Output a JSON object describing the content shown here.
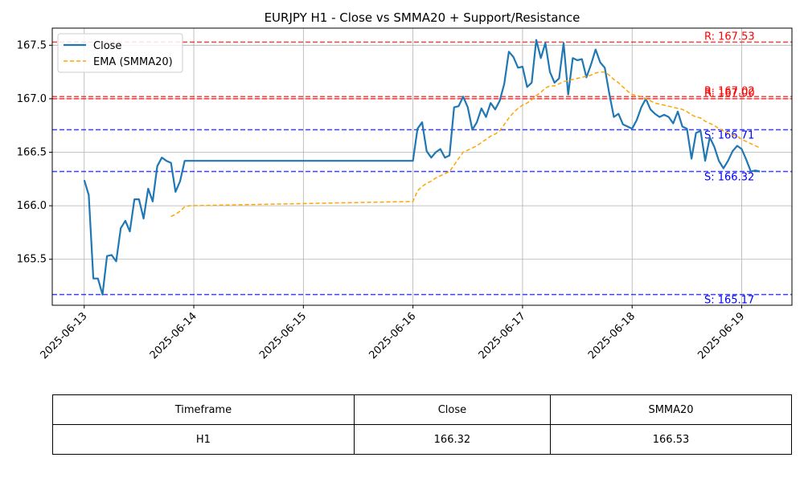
{
  "chart_data": {
    "type": "line",
    "title": "EURJPY H1 - Close vs SMMA20 + Support/Resistance",
    "xlabel": "",
    "ylabel": "",
    "x_range": [
      "2025-06-12T17:00",
      "2025-06-19T11:00"
    ],
    "ylim": [
      165.07,
      167.66
    ],
    "y_ticks": [
      165.5,
      166.0,
      166.5,
      167.0,
      167.5
    ],
    "x_tick_labels": [
      "2025-06-13",
      "2025-06-14",
      "2025-06-15",
      "2025-06-16",
      "2025-06-17",
      "2025-06-18",
      "2025-06-19"
    ],
    "grid": true,
    "legend_position": "top-left",
    "series": [
      {
        "name": "Close",
        "color": "#1f77b4",
        "style": "solid",
        "x": [
          "2025-06-13T00:00",
          "2025-06-13T01:00",
          "2025-06-13T02:00",
          "2025-06-13T03:00",
          "2025-06-13T04:00",
          "2025-06-13T05:00",
          "2025-06-13T06:00",
          "2025-06-13T07:00",
          "2025-06-13T08:00",
          "2025-06-13T09:00",
          "2025-06-13T10:00",
          "2025-06-13T11:00",
          "2025-06-13T12:00",
          "2025-06-13T13:00",
          "2025-06-13T14:00",
          "2025-06-13T15:00",
          "2025-06-13T16:00",
          "2025-06-13T17:00",
          "2025-06-13T18:00",
          "2025-06-13T19:00",
          "2025-06-13T20:00",
          "2025-06-13T21:00",
          "2025-06-13T22:00",
          "2025-06-13T23:00",
          "2025-06-16T00:00",
          "2025-06-16T01:00",
          "2025-06-16T02:00",
          "2025-06-16T03:00",
          "2025-06-16T04:00",
          "2025-06-16T05:00",
          "2025-06-16T06:00",
          "2025-06-16T07:00",
          "2025-06-16T08:00",
          "2025-06-16T09:00",
          "2025-06-16T10:00",
          "2025-06-16T11:00",
          "2025-06-16T12:00",
          "2025-06-16T13:00",
          "2025-06-16T14:00",
          "2025-06-16T15:00",
          "2025-06-16T16:00",
          "2025-06-16T17:00",
          "2025-06-16T18:00",
          "2025-06-16T19:00",
          "2025-06-16T20:00",
          "2025-06-16T21:00",
          "2025-06-16T22:00",
          "2025-06-16T23:00",
          "2025-06-17T00:00",
          "2025-06-17T01:00",
          "2025-06-17T02:00",
          "2025-06-17T03:00",
          "2025-06-17T04:00",
          "2025-06-17T05:00",
          "2025-06-17T06:00",
          "2025-06-17T07:00",
          "2025-06-17T08:00",
          "2025-06-17T09:00",
          "2025-06-17T10:00",
          "2025-06-17T11:00",
          "2025-06-17T12:00",
          "2025-06-17T13:00",
          "2025-06-17T14:00",
          "2025-06-17T15:00",
          "2025-06-17T16:00",
          "2025-06-17T17:00",
          "2025-06-17T18:00",
          "2025-06-17T19:00",
          "2025-06-17T20:00",
          "2025-06-17T21:00",
          "2025-06-17T22:00",
          "2025-06-17T23:00",
          "2025-06-18T00:00",
          "2025-06-18T01:00",
          "2025-06-18T02:00",
          "2025-06-18T03:00",
          "2025-06-18T04:00",
          "2025-06-18T05:00",
          "2025-06-18T06:00",
          "2025-06-18T07:00",
          "2025-06-18T08:00",
          "2025-06-18T09:00",
          "2025-06-18T10:00",
          "2025-06-18T11:00",
          "2025-06-18T12:00",
          "2025-06-18T13:00",
          "2025-06-18T14:00",
          "2025-06-18T15:00",
          "2025-06-18T16:00",
          "2025-06-18T17:00",
          "2025-06-18T18:00",
          "2025-06-18T19:00",
          "2025-06-18T20:00",
          "2025-06-18T21:00",
          "2025-06-18T22:00",
          "2025-06-18T23:00",
          "2025-06-19T00:00",
          "2025-06-19T01:00",
          "2025-06-19T02:00",
          "2025-06-19T03:00",
          "2025-06-19T04:00"
        ],
        "y": [
          166.24,
          166.1,
          165.32,
          165.32,
          165.17,
          165.53,
          165.54,
          165.48,
          165.79,
          165.86,
          165.76,
          166.06,
          166.06,
          165.88,
          166.16,
          166.04,
          166.37,
          166.45,
          166.42,
          166.4,
          166.13,
          166.23,
          166.42,
          166.42,
          166.42,
          166.72,
          166.78,
          166.51,
          166.45,
          166.5,
          166.53,
          166.45,
          166.47,
          166.92,
          166.93,
          167.02,
          166.92,
          166.71,
          166.78,
          166.91,
          166.83,
          166.96,
          166.9,
          166.98,
          167.14,
          167.44,
          167.39,
          167.29,
          167.3,
          167.11,
          167.15,
          167.55,
          167.38,
          167.52,
          167.25,
          167.15,
          167.19,
          167.52,
          167.04,
          167.38,
          167.36,
          167.37,
          167.2,
          167.32,
          167.46,
          167.34,
          167.29,
          167.05,
          166.83,
          166.86,
          166.76,
          166.74,
          166.72,
          166.8,
          166.92,
          167.0,
          166.9,
          166.86,
          166.83,
          166.85,
          166.83,
          166.77,
          166.88,
          166.74,
          166.72,
          166.44,
          166.68,
          166.7,
          166.42,
          166.64,
          166.55,
          166.42,
          166.35,
          166.42,
          166.51,
          166.56,
          166.53,
          166.43,
          166.32,
          166.33,
          166.32
        ]
      },
      {
        "name": "EMA (SMMA20)",
        "color": "#ffa500",
        "style": "dashed",
        "x": [
          "2025-06-13T19:00",
          "2025-06-13T20:00",
          "2025-06-13T21:00",
          "2025-06-13T22:00",
          "2025-06-13T23:00",
          "2025-06-16T00:00",
          "2025-06-16T01:00",
          "2025-06-16T02:00",
          "2025-06-16T03:00",
          "2025-06-16T04:00",
          "2025-06-16T05:00",
          "2025-06-16T06:00",
          "2025-06-16T07:00",
          "2025-06-16T08:00",
          "2025-06-16T09:00",
          "2025-06-16T10:00",
          "2025-06-16T11:00",
          "2025-06-16T12:00",
          "2025-06-16T13:00",
          "2025-06-16T14:00",
          "2025-06-16T15:00",
          "2025-06-16T16:00",
          "2025-06-16T17:00",
          "2025-06-16T18:00",
          "2025-06-16T19:00",
          "2025-06-16T20:00",
          "2025-06-16T21:00",
          "2025-06-16T22:00",
          "2025-06-16T23:00",
          "2025-06-17T00:00",
          "2025-06-17T01:00",
          "2025-06-17T02:00",
          "2025-06-17T03:00",
          "2025-06-17T04:00",
          "2025-06-17T05:00",
          "2025-06-17T06:00",
          "2025-06-17T07:00",
          "2025-06-17T08:00",
          "2025-06-17T09:00",
          "2025-06-17T10:00",
          "2025-06-17T11:00",
          "2025-06-17T12:00",
          "2025-06-17T13:00",
          "2025-06-17T14:00",
          "2025-06-17T15:00",
          "2025-06-17T16:00",
          "2025-06-17T17:00",
          "2025-06-17T18:00",
          "2025-06-17T19:00",
          "2025-06-17T20:00",
          "2025-06-17T21:00",
          "2025-06-17T22:00",
          "2025-06-17T23:00",
          "2025-06-18T00:00",
          "2025-06-18T01:00",
          "2025-06-18T02:00",
          "2025-06-18T03:00",
          "2025-06-18T04:00",
          "2025-06-18T05:00",
          "2025-06-18T06:00",
          "2025-06-18T07:00",
          "2025-06-18T08:00",
          "2025-06-18T09:00",
          "2025-06-18T10:00",
          "2025-06-18T11:00",
          "2025-06-18T12:00",
          "2025-06-18T13:00",
          "2025-06-18T14:00",
          "2025-06-18T15:00",
          "2025-06-18T16:00",
          "2025-06-18T17:00",
          "2025-06-18T18:00",
          "2025-06-18T19:00",
          "2025-06-18T20:00",
          "2025-06-18T21:00",
          "2025-06-18T22:00",
          "2025-06-18T23:00",
          "2025-06-19T00:00",
          "2025-06-19T01:00",
          "2025-06-19T02:00",
          "2025-06-19T03:00",
          "2025-06-19T04:00"
        ],
        "y": [
          165.9,
          165.92,
          165.95,
          165.99,
          166.0,
          166.04,
          166.14,
          166.18,
          166.21,
          166.23,
          166.26,
          166.28,
          166.3,
          166.32,
          166.38,
          166.44,
          166.5,
          166.52,
          166.54,
          166.56,
          166.59,
          166.62,
          166.65,
          166.67,
          166.7,
          166.76,
          166.82,
          166.87,
          166.91,
          166.94,
          166.96,
          166.99,
          167.03,
          167.06,
          167.1,
          167.12,
          167.12,
          167.14,
          167.16,
          167.17,
          167.18,
          167.19,
          167.2,
          167.21,
          167.22,
          167.24,
          167.25,
          167.25,
          167.22,
          167.18,
          167.15,
          167.11,
          167.07,
          167.04,
          167.03,
          167.02,
          167.0,
          166.98,
          166.96,
          166.95,
          166.94,
          166.93,
          166.92,
          166.91,
          166.9,
          166.88,
          166.85,
          166.83,
          166.82,
          166.79,
          166.77,
          166.75,
          166.72,
          166.7,
          166.68,
          166.66,
          166.65,
          166.62,
          166.6,
          166.58,
          166.56,
          166.54
        ]
      }
    ],
    "levels": [
      {
        "kind": "resistance",
        "value": 167.53,
        "label": "R: 167.53",
        "color": "#ff0000"
      },
      {
        "kind": "resistance",
        "value": 167.02,
        "label": "R: 167.02",
        "color": "#ff0000"
      },
      {
        "kind": "resistance",
        "value": 167.0,
        "label": "R: 167.00",
        "color": "#ff0000"
      },
      {
        "kind": "support",
        "value": 166.71,
        "label": "S: 166.71",
        "color": "#0000ff"
      },
      {
        "kind": "support",
        "value": 166.32,
        "label": "S: 166.32",
        "color": "#0000ff"
      },
      {
        "kind": "support",
        "value": 165.17,
        "label": "S: 165.17",
        "color": "#0000ff"
      }
    ]
  },
  "table": {
    "headers": [
      "Timeframe",
      "Close",
      "SMMA20"
    ],
    "row": [
      "H1",
      "166.32",
      "166.53"
    ]
  }
}
